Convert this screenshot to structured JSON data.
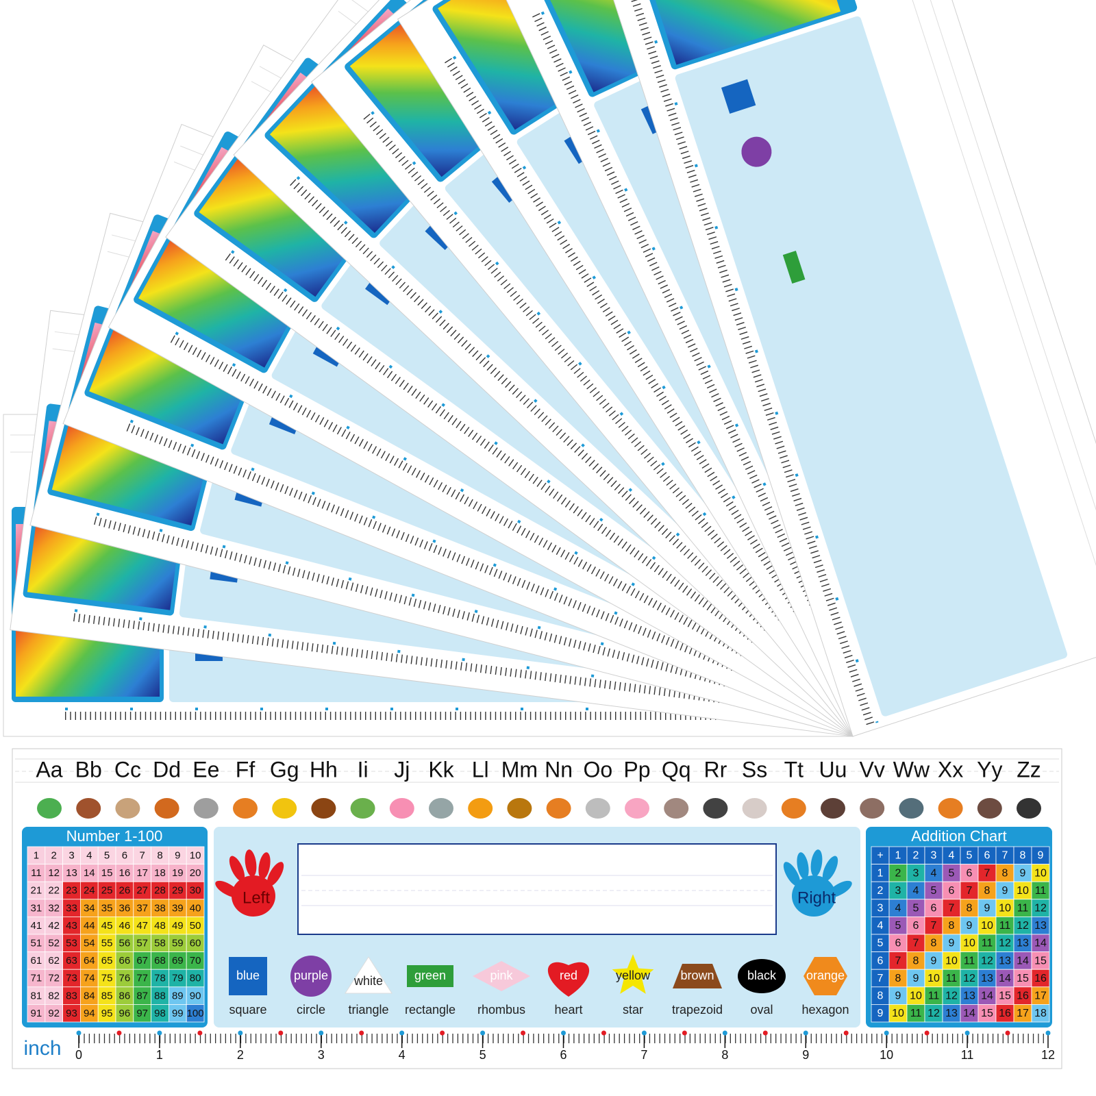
{
  "alphabet": [
    "Aa",
    "Bb",
    "Cc",
    "Dd",
    "Ee",
    "Ff",
    "Gg",
    "Hh",
    "Ii",
    "Jj",
    "Kk",
    "Ll",
    "Mm",
    "Nn",
    "Oo",
    "Pp",
    "Qq",
    "Rr",
    "Ss",
    "Tt",
    "Uu",
    "Vv",
    "Ww",
    "Xx",
    "Yy",
    "Zz"
  ],
  "number_chart": {
    "title": "Number 1-100",
    "rows": [
      [
        1,
        2,
        3,
        4,
        5,
        6,
        7,
        8,
        9,
        10
      ],
      [
        11,
        12,
        13,
        14,
        15,
        16,
        17,
        18,
        19,
        20
      ],
      [
        21,
        22,
        23,
        24,
        25,
        26,
        27,
        28,
        29,
        30
      ],
      [
        31,
        32,
        33,
        34,
        35,
        36,
        37,
        38,
        39,
        40
      ],
      [
        41,
        42,
        43,
        44,
        45,
        46,
        47,
        48,
        49,
        50
      ],
      [
        51,
        52,
        53,
        54,
        55,
        56,
        57,
        58,
        59,
        60
      ],
      [
        61,
        62,
        63,
        64,
        65,
        66,
        67,
        68,
        69,
        70
      ],
      [
        71,
        72,
        73,
        74,
        75,
        76,
        77,
        78,
        79,
        80
      ],
      [
        81,
        82,
        83,
        84,
        85,
        86,
        87,
        88,
        89,
        90
      ],
      [
        91,
        92,
        93,
        94,
        95,
        96,
        97,
        98,
        99,
        100
      ]
    ]
  },
  "name_area": {
    "left": "Left",
    "right": "Right"
  },
  "shapes": [
    {
      "color": "blue",
      "name": "square",
      "fill": "#1565c0"
    },
    {
      "color": "purple",
      "name": "circle",
      "fill": "#7e3fa5"
    },
    {
      "color": "white",
      "name": "triangle",
      "fill": "#ffffff"
    },
    {
      "color": "green",
      "name": "rectangle",
      "fill": "#2e9e3a"
    },
    {
      "color": "pink",
      "name": "rhombus",
      "fill": "#f7c9da"
    },
    {
      "color": "red",
      "name": "heart",
      "fill": "#e31b23"
    },
    {
      "color": "yellow",
      "name": "star",
      "fill": "#f5e600"
    },
    {
      "color": "brown",
      "name": "trapezoid",
      "fill": "#8b4a1c"
    },
    {
      "color": "black",
      "name": "oval",
      "fill": "#000000"
    },
    {
      "color": "orange",
      "name": "hexagon",
      "fill": "#f08a1c"
    }
  ],
  "addition_chart": {
    "title": "Addition Chart",
    "header": [
      "+",
      1,
      2,
      3,
      4,
      5,
      6,
      7,
      8,
      9
    ],
    "rows": [
      [
        1,
        2,
        3,
        4,
        5,
        6,
        7,
        8,
        9,
        10
      ],
      [
        2,
        3,
        4,
        5,
        6,
        7,
        8,
        9,
        10,
        11
      ],
      [
        3,
        4,
        5,
        6,
        7,
        8,
        9,
        10,
        11,
        12
      ],
      [
        4,
        5,
        6,
        7,
        8,
        9,
        10,
        11,
        12,
        13
      ],
      [
        5,
        6,
        7,
        8,
        9,
        10,
        11,
        12,
        13,
        14
      ],
      [
        6,
        7,
        8,
        9,
        10,
        11,
        12,
        13,
        14,
        15
      ],
      [
        7,
        8,
        9,
        10,
        11,
        12,
        13,
        14,
        15,
        16
      ],
      [
        8,
        9,
        10,
        11,
        12,
        13,
        14,
        15,
        16,
        17
      ],
      [
        9,
        10,
        11,
        12,
        13,
        14,
        15,
        16,
        17,
        18
      ]
    ]
  },
  "ruler": {
    "unit": "inch",
    "marks": [
      0,
      1,
      2,
      3,
      4,
      5,
      6,
      7,
      8,
      9,
      10,
      11,
      12
    ]
  }
}
